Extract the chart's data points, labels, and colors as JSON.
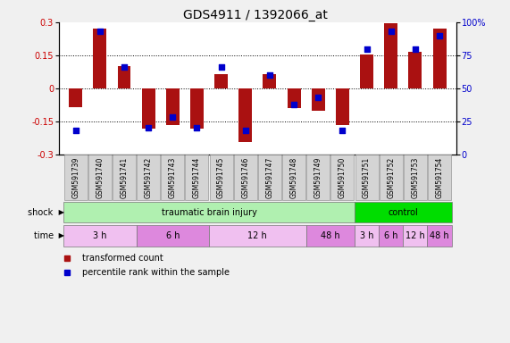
{
  "title": "GDS4911 / 1392066_at",
  "samples": [
    "GSM591739",
    "GSM591740",
    "GSM591741",
    "GSM591742",
    "GSM591743",
    "GSM591744",
    "GSM591745",
    "GSM591746",
    "GSM591747",
    "GSM591748",
    "GSM591749",
    "GSM591750",
    "GSM591751",
    "GSM591752",
    "GSM591753",
    "GSM591754"
  ],
  "transformed_count": [
    -0.085,
    0.27,
    0.1,
    -0.185,
    -0.165,
    -0.185,
    0.065,
    -0.245,
    0.065,
    -0.09,
    -0.1,
    -0.165,
    0.155,
    0.295,
    0.165,
    0.27
  ],
  "percentile_rank": [
    18,
    93,
    66,
    20,
    28,
    20,
    66,
    18,
    60,
    38,
    43,
    18,
    80,
    93,
    80,
    90
  ],
  "ylim_left": [
    -0.3,
    0.3
  ],
  "ylim_right": [
    0,
    100
  ],
  "yticks_left": [
    -0.3,
    -0.15,
    0,
    0.15,
    0.3
  ],
  "yticks_right": [
    0,
    25,
    50,
    75,
    100
  ],
  "hlines": [
    -0.15,
    0.0,
    0.15
  ],
  "bar_color": "#aa1111",
  "dot_color": "#0000cc",
  "fig_bg": "#f0f0f0",
  "plot_bg": "#ffffff",
  "shock_row": [
    {
      "label": "traumatic brain injury",
      "start": 0,
      "end": 12,
      "color": "#b0f0b0"
    },
    {
      "label": "control",
      "start": 12,
      "end": 16,
      "color": "#00dd00"
    }
  ],
  "time_row": [
    {
      "label": "3 h",
      "start": 0,
      "end": 3,
      "color": "#f0c0f0"
    },
    {
      "label": "6 h",
      "start": 3,
      "end": 6,
      "color": "#dd88dd"
    },
    {
      "label": "12 h",
      "start": 6,
      "end": 10,
      "color": "#f0c0f0"
    },
    {
      "label": "48 h",
      "start": 10,
      "end": 12,
      "color": "#dd88dd"
    },
    {
      "label": "3 h",
      "start": 12,
      "end": 13,
      "color": "#f0c0f0"
    },
    {
      "label": "6 h",
      "start": 13,
      "end": 14,
      "color": "#dd88dd"
    },
    {
      "label": "12 h",
      "start": 14,
      "end": 15,
      "color": "#f0c0f0"
    },
    {
      "label": "48 h",
      "start": 15,
      "end": 16,
      "color": "#dd88dd"
    }
  ],
  "legend_items": [
    {
      "label": "transformed count",
      "color": "#aa1111"
    },
    {
      "label": "percentile rank within the sample",
      "color": "#0000cc"
    }
  ],
  "n_samples": 16,
  "tick_label_fontsize": 7,
  "title_fontsize": 10,
  "sample_label_fontsize": 5.5,
  "row_label_fontsize": 7,
  "row_content_fontsize": 7,
  "legend_fontsize": 7
}
